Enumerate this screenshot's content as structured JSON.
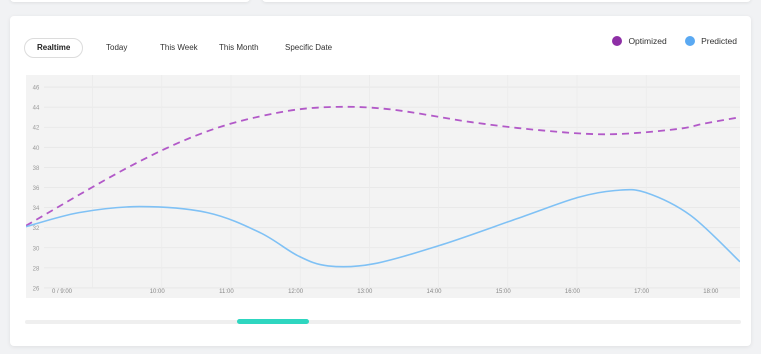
{
  "tabs": [
    {
      "label": "Realtime",
      "active": true
    },
    {
      "label": "Today",
      "active": false
    },
    {
      "label": "This Week",
      "active": false
    },
    {
      "label": "This Month",
      "active": false
    },
    {
      "label": "Specific Date",
      "active": false
    }
  ],
  "legend": [
    {
      "label": "Optimized",
      "color": "#8e2fa6"
    },
    {
      "label": "Predicted",
      "color": "#5aa9f2"
    }
  ],
  "scrollbar": {
    "thumb_color": "#2ed6c0"
  },
  "chart_data": {
    "type": "line",
    "x": [
      "0 / 9:00",
      "10:00",
      "11:00",
      "12:00",
      "13:00",
      "14:00",
      "15:00",
      "16:00",
      "17:00",
      "18:00"
    ],
    "yticks": [
      26,
      28,
      30,
      32,
      34,
      36,
      38,
      40,
      42,
      44,
      46
    ],
    "ylim": [
      25,
      47.2
    ],
    "grid": true,
    "series": [
      {
        "name": "Optimized",
        "color": "#b259c8",
        "style": "dashed",
        "points": [
          [
            0,
            32.2
          ],
          [
            1.4,
            38.2
          ],
          [
            2.4,
            41.6
          ],
          [
            3.3,
            43.4
          ],
          [
            4.0,
            44.0
          ],
          [
            4.8,
            43.8
          ],
          [
            5.9,
            42.5
          ],
          [
            6.8,
            41.7
          ],
          [
            7.7,
            41.3
          ],
          [
            8.6,
            41.8
          ],
          [
            9.0,
            42.4
          ],
          [
            9.45,
            43.0
          ]
        ]
      },
      {
        "name": "Predicted",
        "color": "#7fc1f5",
        "style": "solid",
        "points": [
          [
            0,
            32.1
          ],
          [
            0.7,
            33.5
          ],
          [
            1.5,
            34.1
          ],
          [
            2.4,
            33.5
          ],
          [
            3.1,
            31.5
          ],
          [
            3.6,
            29.2
          ],
          [
            4.0,
            28.2
          ],
          [
            4.6,
            28.4
          ],
          [
            5.5,
            30.3
          ],
          [
            6.5,
            32.9
          ],
          [
            7.3,
            35.0
          ],
          [
            7.8,
            35.7
          ],
          [
            8.2,
            35.5
          ],
          [
            8.8,
            33.2
          ],
          [
            9.45,
            28.6
          ]
        ]
      }
    ]
  }
}
